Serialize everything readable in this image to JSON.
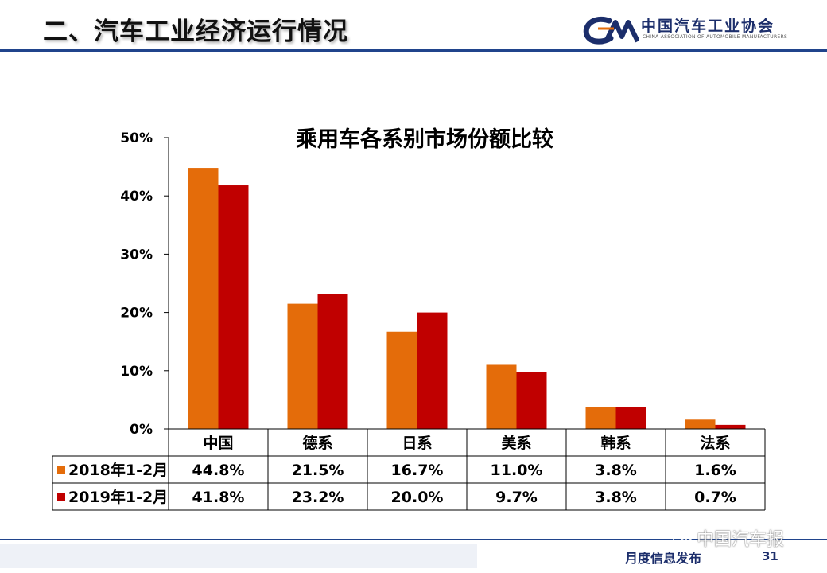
{
  "slide": {
    "title": "二、汽车工业经济运行情况",
    "logo_name": "中国汽车工业协会",
    "logo_sub": "CHINA ASSOCIATION OF AUTOMOBILE MANUFACTURERS",
    "footer_label": "月度信息发布",
    "page_number": "31",
    "watermark": "中国汽车报",
    "accent_color": "#20448c"
  },
  "chart_data": {
    "type": "bar",
    "title": "乘用车各系别市场份额比较",
    "categories": [
      "中国",
      "德系",
      "日系",
      "美系",
      "韩系",
      "法系"
    ],
    "series": [
      {
        "name": "2018年1-2月",
        "color": "#e46c0a",
        "values": [
          44.8,
          21.5,
          16.7,
          11.0,
          3.8,
          1.6
        ],
        "labels": [
          "44.8%",
          "21.5%",
          "16.7%",
          "11.0%",
          "3.8%",
          "1.6%"
        ]
      },
      {
        "name": "2019年1-2月",
        "color": "#c00000",
        "values": [
          41.8,
          23.2,
          20.0,
          9.7,
          3.8,
          0.7
        ],
        "labels": [
          "41.8%",
          "23.2%",
          "20.0%",
          "9.7%",
          "3.8%",
          "0.7%"
        ]
      }
    ],
    "ylim": [
      0,
      50
    ],
    "yticks": [
      0,
      10,
      20,
      30,
      40,
      50
    ],
    "ytick_labels": [
      "0%",
      "10%",
      "20%",
      "30%",
      "40%",
      "50%"
    ],
    "grid": false,
    "legend": "data-table"
  }
}
